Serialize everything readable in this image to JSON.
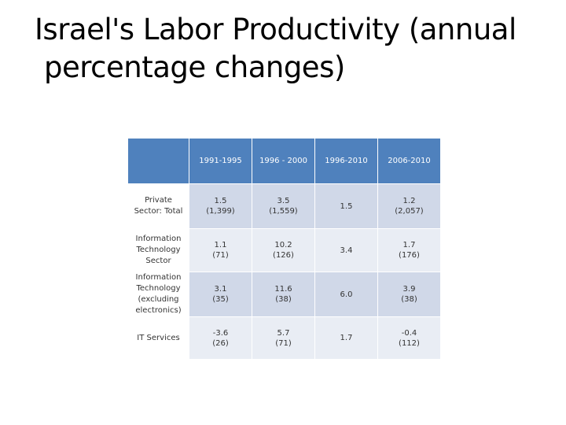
{
  "title": {
    "line1": "Israel's Labor Productivity (annual",
    "line2": "percentage changes)"
  },
  "table": {
    "columns": [
      "1991-1995",
      "1996 - 2000",
      "1996-2010",
      "2006-2010"
    ],
    "rows": [
      {
        "label": "Private Sector: Total",
        "cells": [
          {
            "value": "1.5",
            "note": "(1,399)"
          },
          {
            "value": "3.5",
            "note": "(1,559)"
          },
          {
            "value": "1.5",
            "note": ""
          },
          {
            "value": "1.2",
            "note": "(2,057)"
          }
        ]
      },
      {
        "label": "Information Technology Sector",
        "cells": [
          {
            "value": "1.1",
            "note": "(71)"
          },
          {
            "value": "10.2",
            "note": "(126)"
          },
          {
            "value": "3.4",
            "note": ""
          },
          {
            "value": "1.7",
            "note": "(176)"
          }
        ]
      },
      {
        "label": "Information Technology (excluding electronics)",
        "cells": [
          {
            "value": "3.1",
            "note": "(35)"
          },
          {
            "value": "11.6",
            "note": "(38)"
          },
          {
            "value": "6.0",
            "note": ""
          },
          {
            "value": "3.9",
            "note": "(38)"
          }
        ]
      },
      {
        "label": "IT Services",
        "cells": [
          {
            "value": "-3.6",
            "note": "(26)"
          },
          {
            "value": "5.7",
            "note": "(71)"
          },
          {
            "value": "1.7",
            "note": ""
          },
          {
            "value": "-0.4",
            "note": "(112)"
          }
        ]
      }
    ]
  }
}
